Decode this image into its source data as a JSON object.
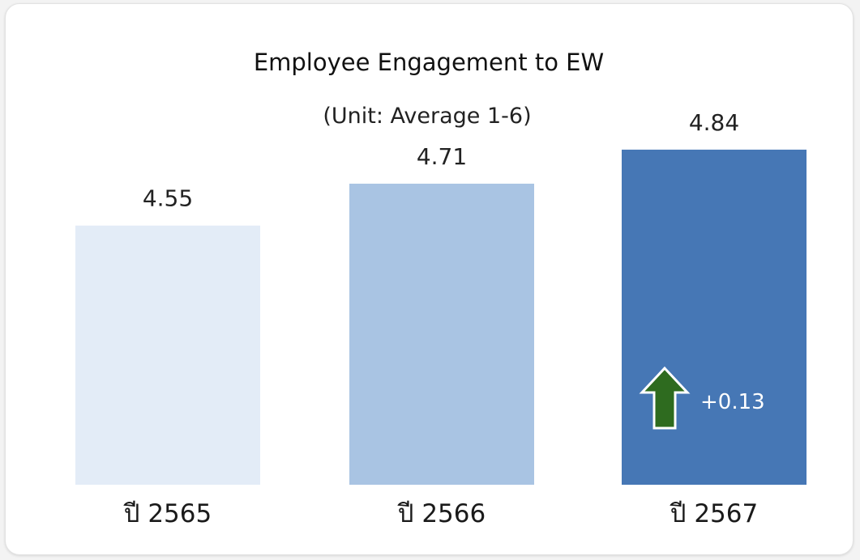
{
  "chart_data": {
    "type": "bar",
    "title": "Employee Engagement  to EW",
    "subtitle": "(Unit:  Average  1-6)",
    "categories": [
      "ปี 2565",
      "ปี 2566",
      "ปี 2567"
    ],
    "values": [
      4.55,
      4.71,
      4.84
    ],
    "value_labels": [
      "4.55",
      "4.71",
      "4.84"
    ],
    "bar_colors": [
      "#e3ecf7",
      "#a9c4e3",
      "#4677b5"
    ],
    "ylim": [
      3.56,
      5.0
    ],
    "grid": false,
    "legend": "none",
    "annotation": {
      "category_index": 2,
      "text": "+0.13",
      "icon": "up-arrow-icon",
      "icon_color": "#2e6b1f"
    }
  }
}
